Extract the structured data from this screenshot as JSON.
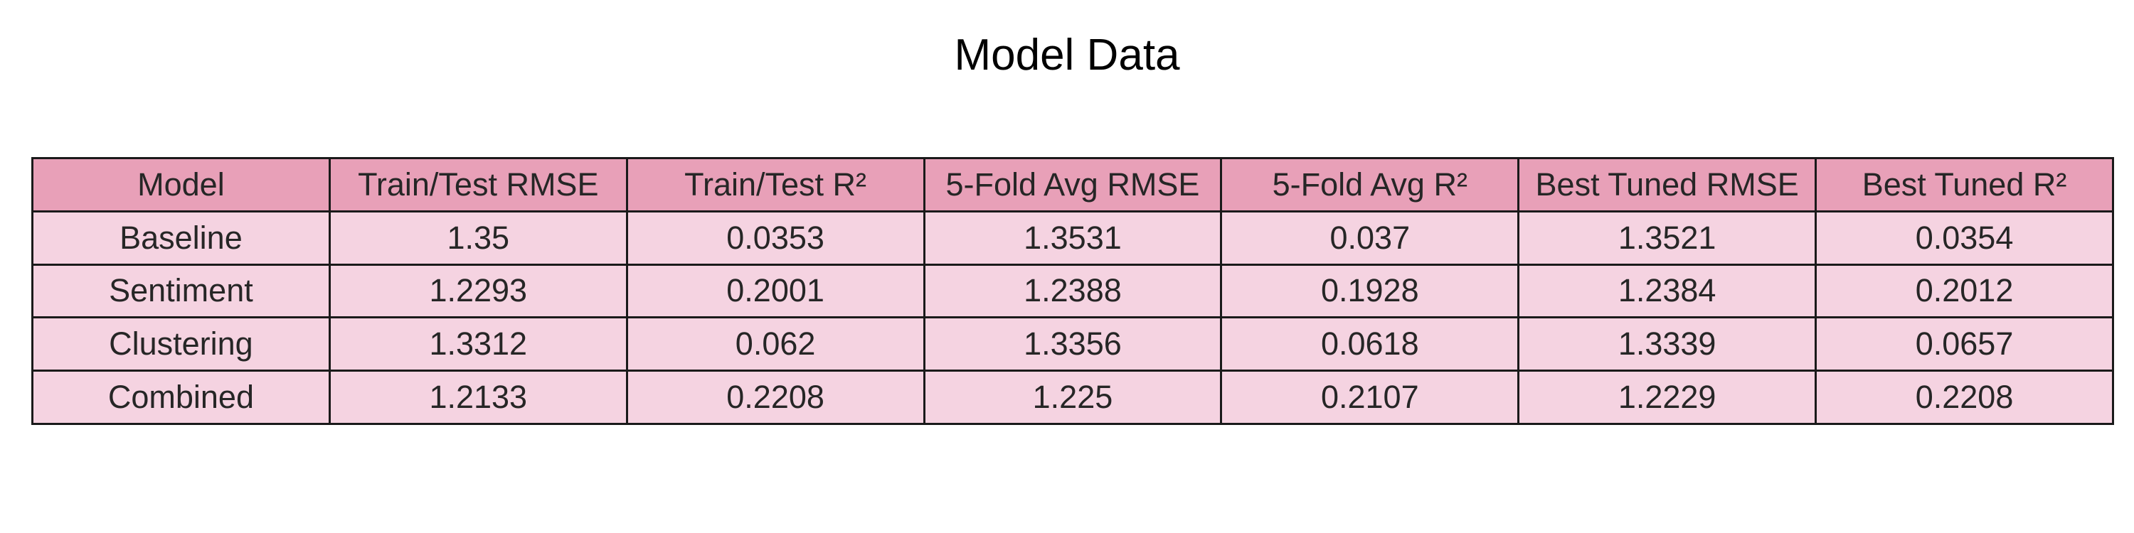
{
  "chart_data": {
    "type": "table",
    "title": "Model Data",
    "columns": [
      "Model",
      "Train/Test RMSE",
      "Train/Test R²",
      "5-Fold Avg RMSE",
      "5-Fold Avg R²",
      "Best Tuned RMSE",
      "Best Tuned R²"
    ],
    "rows": [
      [
        "Baseline",
        "1.35",
        "0.0353",
        "1.3531",
        "0.037",
        "1.3521",
        "0.0354"
      ],
      [
        "Sentiment",
        "1.2293",
        "0.2001",
        "1.2388",
        "0.1928",
        "1.2384",
        "0.2012"
      ],
      [
        "Clustering",
        "1.3312",
        "0.062",
        "1.3356",
        "0.0618",
        "1.3339",
        "0.0657"
      ],
      [
        "Combined",
        "1.2133",
        "0.2208",
        "1.225",
        "0.2107",
        "1.2229",
        "0.2208"
      ]
    ],
    "colors": {
      "header_background": "#e8a0b8",
      "cell_background": "#f5d3e1",
      "border": "#1a1a1a"
    }
  }
}
